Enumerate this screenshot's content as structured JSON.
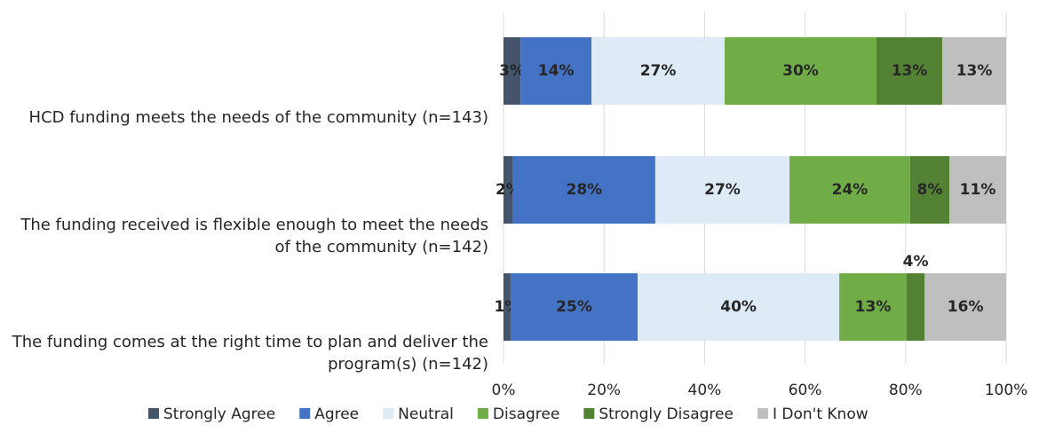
{
  "chart_data": {
    "type": "stacked-bar-horizontal",
    "categories": [
      "HCD funding meets the needs of the community (n=143)",
      "The funding received is flexible enough to meet the needs of the community (n=142)",
      "The funding comes at the right time to plan and deliver the program(s) (n=142)"
    ],
    "series": [
      {
        "name": "Strongly Agree",
        "color": "#44546a",
        "values": [
          3.4,
          1.9,
          1.4
        ],
        "value_labels": [
          "3%",
          "2%",
          "1%"
        ]
      },
      {
        "name": "Agree",
        "color": "#4472c4",
        "values": [
          14.1,
          28.3,
          25.3
        ],
        "value_labels": [
          "14%",
          "28%",
          "25%"
        ]
      },
      {
        "name": "Neutral",
        "color": "#deebf7",
        "values": [
          26.5,
          26.7,
          40.1
        ],
        "value_labels": [
          "27%",
          "27%",
          "40%"
        ]
      },
      {
        "name": "Disagree",
        "color": "#70ad47",
        "values": [
          30.2,
          24.0,
          13.4
        ],
        "value_labels": [
          "30%",
          "24%",
          "13%"
        ]
      },
      {
        "name": "Strongly Disagree",
        "color": "#548235",
        "values": [
          13.1,
          7.8,
          3.6
        ],
        "value_labels": [
          "13%",
          "8%",
          "4%"
        ]
      },
      {
        "name": "I Don't Know",
        "color": "#bfbfbf",
        "values": [
          12.7,
          11.3,
          16.2
        ],
        "value_labels": [
          "13%",
          "11%",
          "16%"
        ]
      }
    ],
    "xlim": [
      0,
      100
    ],
    "xticks": [
      {
        "value": 0,
        "label": "0%"
      },
      {
        "value": 20,
        "label": "20%"
      },
      {
        "value": 40,
        "label": "40%"
      },
      {
        "value": 60,
        "label": "60%"
      },
      {
        "value": 80,
        "label": "80%"
      },
      {
        "value": 100,
        "label": "100%"
      }
    ],
    "grid": true,
    "legend": "bottom"
  }
}
